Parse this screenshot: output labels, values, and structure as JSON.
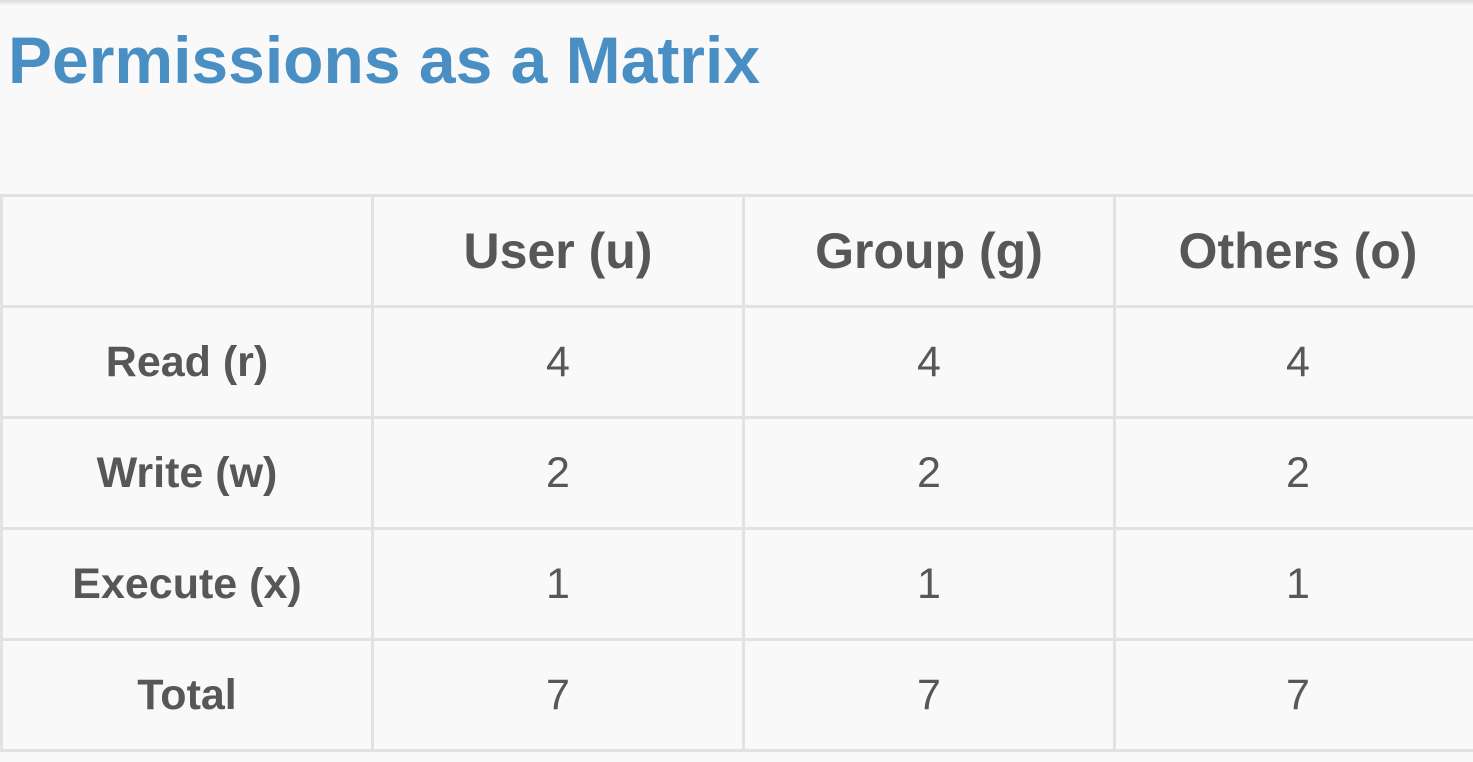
{
  "title": "Permissions as a Matrix",
  "colors": {
    "title": "#4a8fc4",
    "text": "#575757",
    "grid": "#e2e2e2",
    "background": "#f9f9f9"
  },
  "matrix": {
    "columns": [
      "User (u)",
      "Group (g)",
      "Others (o)"
    ],
    "rows": [
      {
        "label": "Read (r)",
        "values": [
          "4",
          "4",
          "4"
        ]
      },
      {
        "label": "Write (w)",
        "values": [
          "2",
          "2",
          "2"
        ]
      },
      {
        "label": "Execute (x)",
        "values": [
          "1",
          "1",
          "1"
        ]
      },
      {
        "label": "Total",
        "values": [
          "7",
          "7",
          "7"
        ]
      }
    ]
  }
}
